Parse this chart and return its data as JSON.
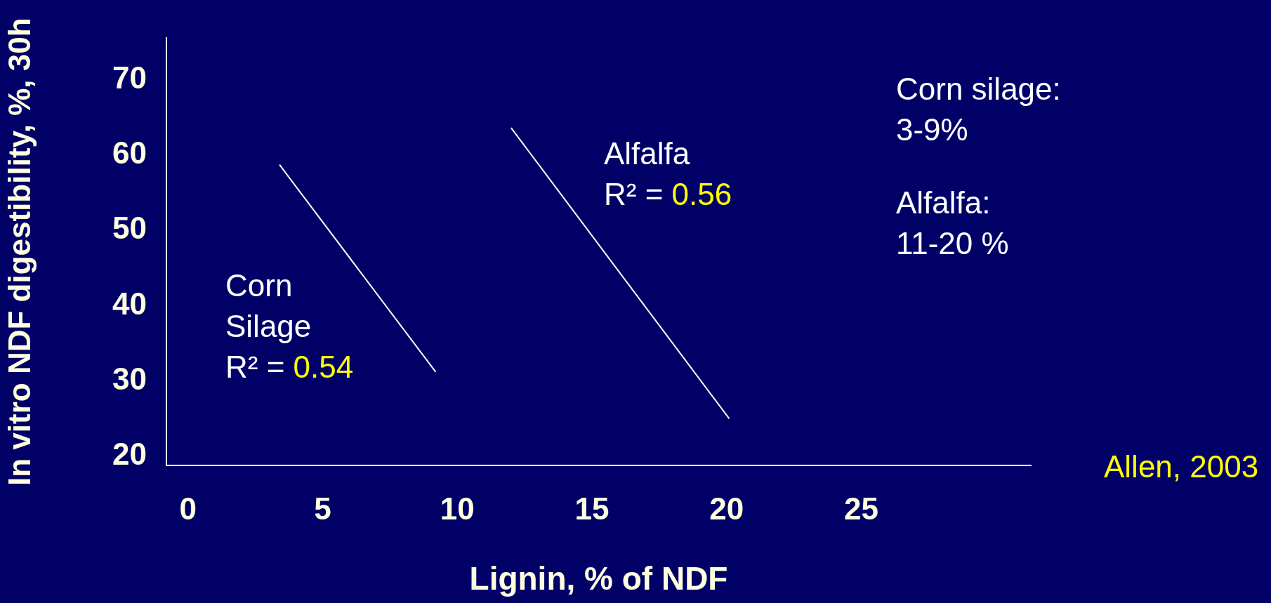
{
  "chart_data": {
    "type": "line",
    "xlabel": "Lignin, % of NDF",
    "ylabel": "In vitro NDF digestibility, %, 30h",
    "xlim": [
      -0.8,
      31.3
    ],
    "xticks": [
      0,
      5,
      10,
      15,
      20,
      25
    ],
    "ylim": [
      18.8,
      75.5
    ],
    "yticks": [
      20,
      30,
      40,
      50,
      60,
      70
    ],
    "grid": false,
    "legend": false,
    "marker": "none",
    "line_style": "solid",
    "series": [
      {
        "color": "#ffffff",
        "x": [
          3.4,
          9.2
        ],
        "values": [
          58.7,
          31.2
        ]
      },
      {
        "color": "#ffffff",
        "x": [
          12.0,
          20.1
        ],
        "values": [
          63.6,
          25.0
        ]
      }
    ],
    "annotations": [
      "Corn\nSilage\nR² = 0.54",
      "Alfalfa\nR² = 0.56",
      "Corn silage:\n3-9%",
      "Alfalfa:\n11-20 %",
      "Allen, 2003"
    ]
  }
}
